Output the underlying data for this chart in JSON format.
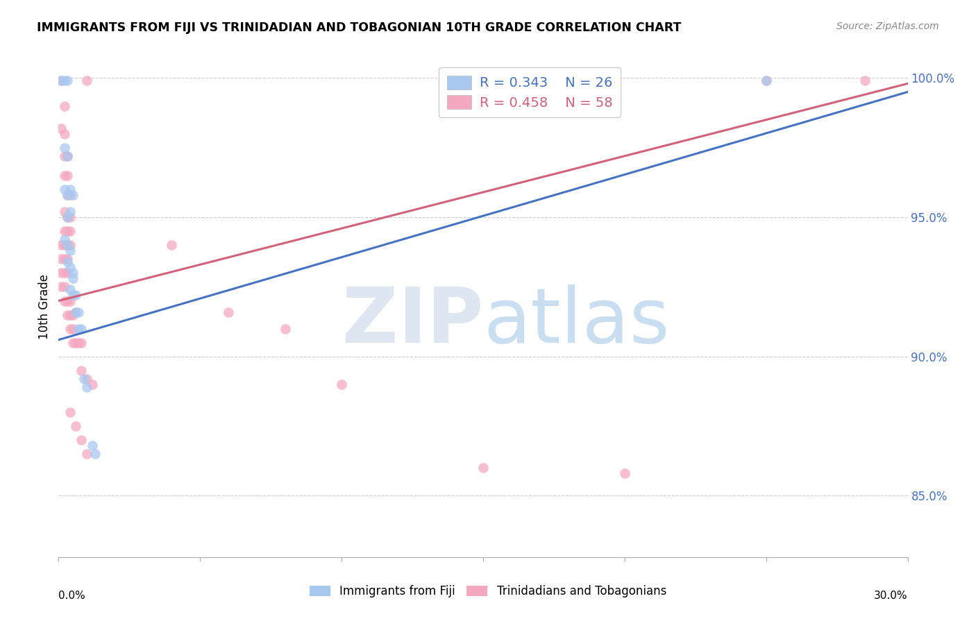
{
  "title": "IMMIGRANTS FROM FIJI VS TRINIDADIAN AND TOBAGONIAN 10TH GRADE CORRELATION CHART",
  "source": "Source: ZipAtlas.com",
  "ylabel_label": "10th Grade",
  "x_min": 0.0,
  "x_max": 0.3,
  "y_min": 0.828,
  "y_max": 1.008,
  "y_ticks": [
    0.85,
    0.9,
    0.95,
    1.0
  ],
  "y_tick_labels": [
    "85.0%",
    "90.0%",
    "95.0%",
    "100.0%"
  ],
  "fiji_color": "#a8c8f0",
  "tt_color": "#f4a8c0",
  "fiji_line_color": "#4472C4",
  "tt_line_color": "#d4607a",
  "fiji_line": [
    [
      0.0,
      0.906
    ],
    [
      0.3,
      0.995
    ]
  ],
  "tt_line": [
    [
      0.0,
      0.92
    ],
    [
      0.3,
      0.998
    ]
  ],
  "fiji_points": [
    [
      0.001,
      0.999
    ],
    [
      0.002,
      0.999
    ],
    [
      0.003,
      0.999
    ],
    [
      0.002,
      0.975
    ],
    [
      0.003,
      0.972
    ],
    [
      0.002,
      0.96
    ],
    [
      0.003,
      0.958
    ],
    [
      0.004,
      0.96
    ],
    [
      0.005,
      0.958
    ],
    [
      0.003,
      0.95
    ],
    [
      0.004,
      0.952
    ],
    [
      0.002,
      0.942
    ],
    [
      0.003,
      0.94
    ],
    [
      0.004,
      0.938
    ],
    [
      0.003,
      0.934
    ],
    [
      0.004,
      0.932
    ],
    [
      0.005,
      0.93
    ],
    [
      0.005,
      0.928
    ],
    [
      0.004,
      0.924
    ],
    [
      0.005,
      0.922
    ],
    [
      0.006,
      0.922
    ],
    [
      0.006,
      0.916
    ],
    [
      0.007,
      0.916
    ],
    [
      0.007,
      0.91
    ],
    [
      0.008,
      0.91
    ],
    [
      0.009,
      0.892
    ],
    [
      0.01,
      0.889
    ],
    [
      0.012,
      0.868
    ],
    [
      0.013,
      0.865
    ],
    [
      0.25,
      0.999
    ]
  ],
  "tt_points": [
    [
      0.001,
      0.999
    ],
    [
      0.01,
      0.999
    ],
    [
      0.25,
      0.999
    ],
    [
      0.285,
      0.999
    ],
    [
      0.002,
      0.99
    ],
    [
      0.001,
      0.982
    ],
    [
      0.002,
      0.98
    ],
    [
      0.002,
      0.972
    ],
    [
      0.003,
      0.972
    ],
    [
      0.002,
      0.965
    ],
    [
      0.003,
      0.965
    ],
    [
      0.003,
      0.958
    ],
    [
      0.004,
      0.958
    ],
    [
      0.002,
      0.952
    ],
    [
      0.003,
      0.95
    ],
    [
      0.004,
      0.95
    ],
    [
      0.002,
      0.945
    ],
    [
      0.003,
      0.945
    ],
    [
      0.004,
      0.945
    ],
    [
      0.001,
      0.94
    ],
    [
      0.002,
      0.94
    ],
    [
      0.003,
      0.94
    ],
    [
      0.004,
      0.94
    ],
    [
      0.001,
      0.935
    ],
    [
      0.002,
      0.935
    ],
    [
      0.003,
      0.935
    ],
    [
      0.001,
      0.93
    ],
    [
      0.002,
      0.93
    ],
    [
      0.003,
      0.93
    ],
    [
      0.001,
      0.925
    ],
    [
      0.002,
      0.925
    ],
    [
      0.002,
      0.92
    ],
    [
      0.003,
      0.92
    ],
    [
      0.004,
      0.92
    ],
    [
      0.003,
      0.915
    ],
    [
      0.004,
      0.915
    ],
    [
      0.005,
      0.915
    ],
    [
      0.006,
      0.916
    ],
    [
      0.004,
      0.91
    ],
    [
      0.005,
      0.91
    ],
    [
      0.005,
      0.905
    ],
    [
      0.006,
      0.905
    ],
    [
      0.007,
      0.905
    ],
    [
      0.008,
      0.905
    ],
    [
      0.008,
      0.895
    ],
    [
      0.01,
      0.892
    ],
    [
      0.012,
      0.89
    ],
    [
      0.004,
      0.88
    ],
    [
      0.006,
      0.875
    ],
    [
      0.008,
      0.87
    ],
    [
      0.01,
      0.865
    ],
    [
      0.04,
      0.94
    ],
    [
      0.06,
      0.916
    ],
    [
      0.08,
      0.91
    ],
    [
      0.1,
      0.89
    ],
    [
      0.15,
      0.86
    ],
    [
      0.2,
      0.858
    ]
  ]
}
